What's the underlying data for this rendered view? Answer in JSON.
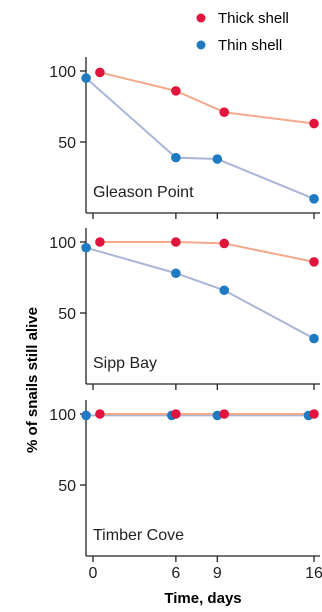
{
  "chart_data": {
    "type": "line",
    "xlabel": "Time, days",
    "ylabel": "% of snails still alive",
    "xlim": [
      -1,
      17
    ],
    "ylim": [
      0,
      105
    ],
    "x_ticks": [
      "0",
      "6",
      "9",
      "16"
    ],
    "y_ticks": [
      "100",
      "50"
    ],
    "legend": [
      {
        "name": "Thick shell",
        "color": "#e0143c",
        "line_color": "#f3a98a"
      },
      {
        "name": "Thin shell",
        "color": "#1f7bc1",
        "line_color": "#a9b6d8"
      }
    ],
    "panels": [
      {
        "label": "Gleason Point",
        "series": [
          {
            "name": "Thick shell",
            "x": [
              0.5,
              6,
              9.5,
              16
            ],
            "y": [
              99,
              86,
              71,
              63
            ]
          },
          {
            "name": "Thin shell",
            "x": [
              -0.5,
              6,
              9,
              16
            ],
            "y": [
              95,
              39,
              38,
              10
            ]
          }
        ]
      },
      {
        "label": "Sipp Bay",
        "series": [
          {
            "name": "Thick shell",
            "x": [
              0.5,
              6,
              9.5,
              16
            ],
            "y": [
              100,
              100,
              99,
              86
            ]
          },
          {
            "name": "Thin shell",
            "x": [
              -0.5,
              6,
              9.5,
              16
            ],
            "y": [
              96,
              78,
              66,
              32
            ]
          }
        ]
      },
      {
        "label": "Timber Cove",
        "series": [
          {
            "name": "Thick shell",
            "x": [
              0.5,
              6,
              9.5,
              16
            ],
            "y": [
              100,
              100,
              100,
              100
            ]
          },
          {
            "name": "Thin shell",
            "x": [
              -0.5,
              5.7,
              9,
              15.6
            ],
            "y": [
              99,
              99,
              99,
              99
            ]
          }
        ]
      }
    ]
  }
}
